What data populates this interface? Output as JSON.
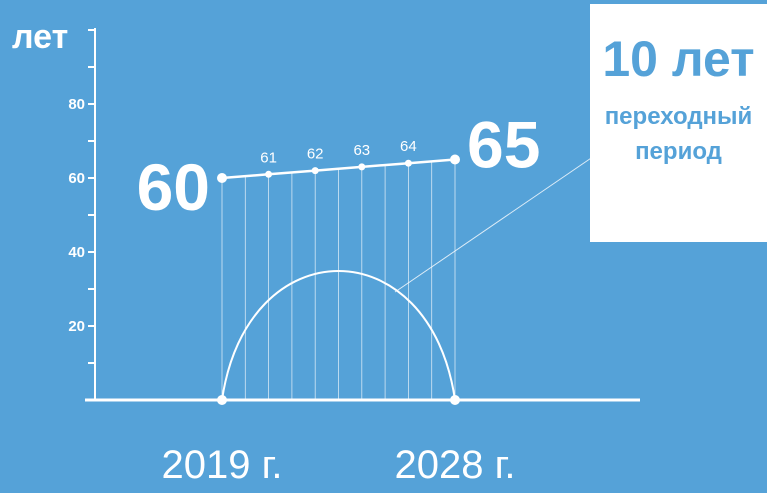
{
  "chart_data": {
    "type": "line",
    "unit_label": "лет",
    "y_ticks": [
      20,
      40,
      60,
      80
    ],
    "ylim": [
      0,
      100
    ],
    "series": [
      {
        "values": [
          60,
          61,
          62,
          63,
          64,
          65
        ]
      }
    ],
    "point_labels": [
      "60",
      "61",
      "62",
      "63",
      "64",
      "65"
    ],
    "transition_start_year": "2019 г.",
    "transition_end_year": "2028 г."
  },
  "callout": {
    "title": "10 лет",
    "subtitle_line1": "переходный",
    "subtitle_line2": "период"
  },
  "colors": {
    "background": "#55a2d8",
    "foreground": "#ffffff",
    "callout_text": "#55a2d8"
  }
}
